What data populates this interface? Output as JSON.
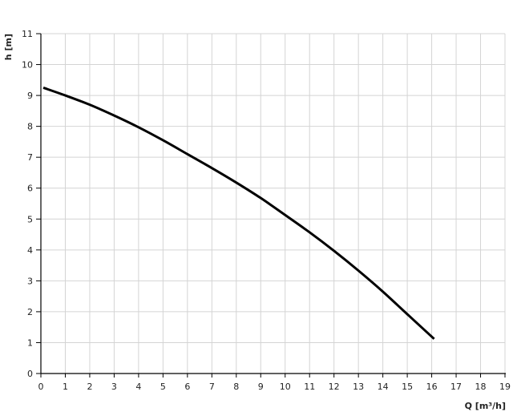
{
  "chart_data": {
    "type": "line",
    "title": "",
    "xlabel": "Q [m³/h]",
    "ylabel": "h [m]",
    "xlim": [
      0,
      19
    ],
    "ylim": [
      0,
      11
    ],
    "grid": true,
    "xticks": [
      "0",
      "1",
      "2",
      "3",
      "4",
      "5",
      "6",
      "7",
      "8",
      "9",
      "10",
      "11",
      "12",
      "13",
      "14",
      "15",
      "16",
      "17",
      "18",
      "19"
    ],
    "yticks": [
      "0",
      "1",
      "2",
      "3",
      "4",
      "5",
      "6",
      "7",
      "8",
      "9",
      "10",
      "11"
    ],
    "series": [
      {
        "color": "#000000",
        "x": [
          0.1,
          1,
          2,
          3,
          4,
          5,
          6,
          7,
          8,
          9,
          10,
          11,
          12,
          13,
          14,
          15,
          16.1
        ],
        "y": [
          9.25,
          9.0,
          8.7,
          8.35,
          7.97,
          7.55,
          7.1,
          6.65,
          6.18,
          5.68,
          5.13,
          4.57,
          3.97,
          3.33,
          2.65,
          1.92,
          1.12
        ]
      }
    ],
    "grid_color": "#d4d4d4"
  }
}
